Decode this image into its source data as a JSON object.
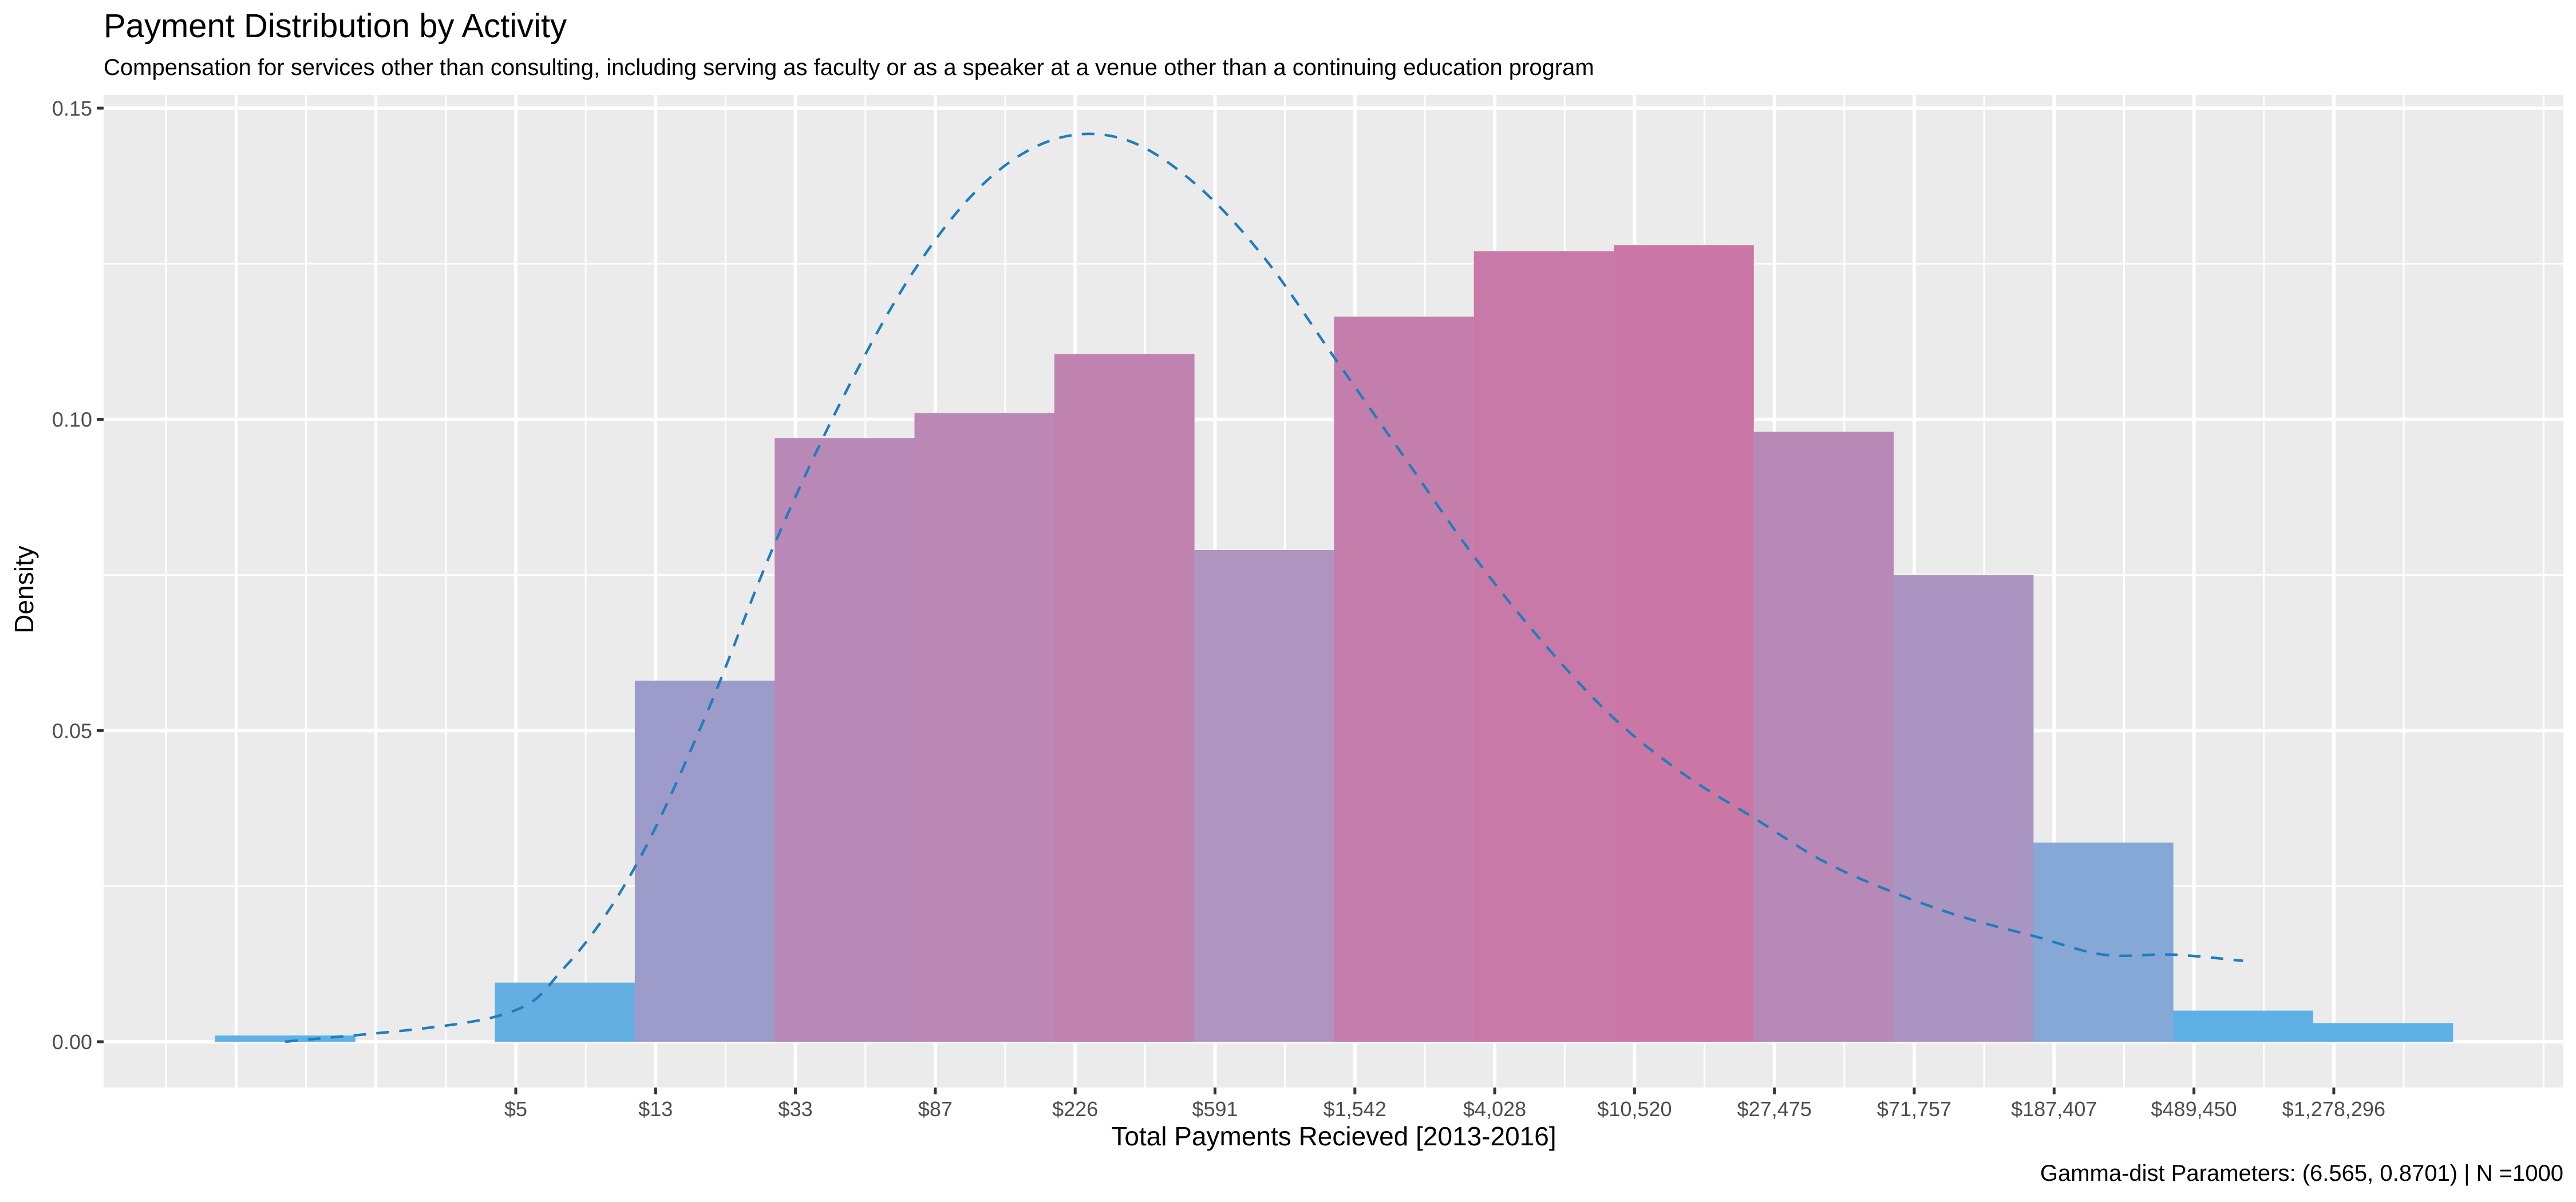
{
  "chart_data": {
    "type": "bar",
    "title": "Payment Distribution by Activity",
    "subtitle": "Compensation for services other than consulting, including serving as faculty or as a speaker at a venue other than a continuing education program",
    "xlabel": "Total Payments Recieved [2013-2016]",
    "ylabel": "Density",
    "caption": "Gamma-dist Parameters: (6.565, 0.8701) | N =1000",
    "x_scale": "log",
    "x_tick_labels": [
      "$5",
      "$13",
      "$33",
      "$87",
      "$226",
      "$591",
      "$1,542",
      "$4,028",
      "$10,520",
      "$27,475",
      "$71,757",
      "$187,407",
      "$489,450",
      "$1,278,296"
    ],
    "y_ticks": [
      0.0,
      0.05,
      0.1,
      0.15
    ],
    "y_tick_labels": [
      "0.00",
      "0.05",
      "0.10",
      "0.15"
    ],
    "ylim": [
      0,
      0.155
    ],
    "grid": true,
    "bins": [
      {
        "bin": 1,
        "value": 0.001,
        "color": "#5DB1E5"
      },
      {
        "bin": 3,
        "value": 0.0095,
        "color": "#64AFE2"
      },
      {
        "bin": 4,
        "value": 0.058,
        "color": "#9D9BC9"
      },
      {
        "bin": 5,
        "value": 0.097,
        "color": "#B889B7"
      },
      {
        "bin": 6,
        "value": 0.101,
        "color": "#BB88B5"
      },
      {
        "bin": 7,
        "value": 0.1105,
        "color": "#C082AE"
      },
      {
        "bin": 8,
        "value": 0.079,
        "color": "#AE94BF"
      },
      {
        "bin": 9,
        "value": 0.1165,
        "color": "#C47EAB"
      },
      {
        "bin": 10,
        "value": 0.127,
        "color": "#C879A7"
      },
      {
        "bin": 11,
        "value": 0.128,
        "color": "#CA77A5"
      },
      {
        "bin": 12,
        "value": 0.098,
        "color": "#B889B7"
      },
      {
        "bin": 13,
        "value": 0.075,
        "color": "#AA94C1"
      },
      {
        "bin": 14,
        "value": 0.032,
        "color": "#86A8D7"
      },
      {
        "bin": 15,
        "value": 0.005,
        "color": "#5FB0E4"
      },
      {
        "bin": 16,
        "value": 0.003,
        "color": "#5DB1E5"
      }
    ],
    "density_curve": {
      "name": "Gamma density",
      "color": "#1F7DBB",
      "style": "dashed",
      "bin_positions": [
        1.5,
        3.0,
        3.5,
        4.0,
        4.5,
        5.0,
        5.5,
        6.0,
        6.5,
        7.0,
        7.5,
        8.0,
        8.5,
        9.0,
        9.5,
        10.0,
        10.5,
        11.0,
        11.5,
        12.0,
        12.5,
        13.0,
        13.5,
        14.0,
        14.5,
        15.0,
        15.5
      ],
      "values": [
        0.0,
        0.004,
        0.012,
        0.028,
        0.052,
        0.08,
        0.104,
        0.124,
        0.138,
        0.145,
        0.145,
        0.138,
        0.126,
        0.11,
        0.094,
        0.078,
        0.064,
        0.052,
        0.043,
        0.036,
        0.029,
        0.024,
        0.02,
        0.017,
        0.014,
        0.014,
        0.013
      ]
    },
    "colors": {
      "panel": "#EBEBEB",
      "grid": "#FFFFFF",
      "curve": "#1F7DBB"
    }
  }
}
